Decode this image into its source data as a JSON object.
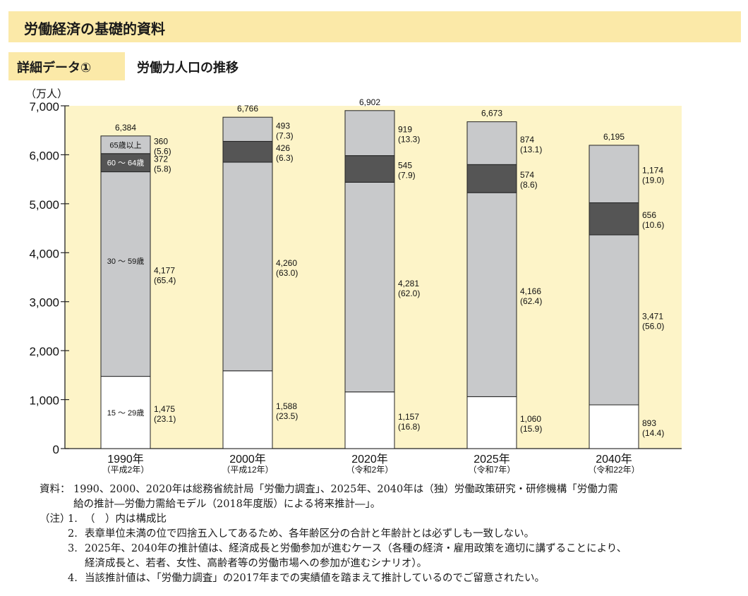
{
  "header": {
    "title": "労働経済の基礎的資料"
  },
  "section": {
    "tag": "詳細データ①",
    "title": "労働力人口の推移"
  },
  "colors": {
    "plot_bg": "#fdf4c8",
    "age_15_29": "#ffffff",
    "age_30_59": "#c8c9cb",
    "age_60_64": "#555555",
    "age_65_plus": "#c8c9cb"
  },
  "chart_data": {
    "type": "bar",
    "stacked": true,
    "ylabel": "（万人）",
    "ylim": [
      0,
      7000
    ],
    "yticks": [
      "0",
      "1,000",
      "2,000",
      "3,000",
      "4,000",
      "5,000",
      "6,000",
      "7,000"
    ],
    "categories": [
      "1990年",
      "2000年",
      "2020年",
      "2025年",
      "2040年"
    ],
    "category_sublabels": [
      "（平成2年）",
      "（平成12年）",
      "（令和2年）",
      "（令和7年）",
      "（令和22年）"
    ],
    "totals": [
      6384,
      6766,
      6902,
      6673,
      6195
    ],
    "total_labels": [
      "6,384",
      "6,766",
      "6,902",
      "6,673",
      "6,195"
    ],
    "series": [
      {
        "name": "15 ～ 29歳",
        "values": [
          1475,
          1588,
          1157,
          1060,
          893
        ],
        "value_labels": [
          "1,475",
          "1,588",
          "1,157",
          "1,060",
          "893"
        ],
        "share_labels": [
          "(23.1)",
          "(23.5)",
          "(16.8)",
          "(15.9)",
          "(14.4)"
        ]
      },
      {
        "name": "30 ～ 59歳",
        "values": [
          4177,
          4260,
          4281,
          4166,
          3471
        ],
        "value_labels": [
          "4,177",
          "4,260",
          "4,281",
          "4,166",
          "3,471"
        ],
        "share_labels": [
          "(65.4)",
          "(63.0)",
          "(62.0)",
          "(62.4)",
          "(56.0)"
        ]
      },
      {
        "name": "60 ～ 64歳",
        "values": [
          372,
          426,
          545,
          574,
          656
        ],
        "value_labels": [
          "372",
          "426",
          "545",
          "574",
          "656"
        ],
        "share_labels": [
          "(5.8)",
          "(6.3)",
          "(7.9)",
          "(8.6)",
          "(10.6)"
        ]
      },
      {
        "name": "65歳以上",
        "values": [
          360,
          493,
          919,
          874,
          1174
        ],
        "value_labels": [
          "360",
          "493",
          "919",
          "874",
          "1,174"
        ],
        "share_labels": [
          "(5.6)",
          "(7.3)",
          "(13.3)",
          "(13.1)",
          "(19.0)"
        ]
      }
    ]
  },
  "notes": {
    "source_label": "資料：",
    "source_line1": "1990、2000、2020年は総務省統計局「労働力調査」、2025年、2040年は（独）労働政策研究・研修機構「労働力需",
    "source_line2": "給の推計―労働力需給モデル（2018年度版）による将来推計―」。",
    "note_label": "（注）",
    "items": [
      {
        "num": "1.",
        "text": "（　）内は構成比"
      },
      {
        "num": "2.",
        "text": "表章単位未満の位で四捨五入してあるため、各年齢区分の合計と年齢計とは必ずしも一致しない。"
      },
      {
        "num": "3.",
        "text": "2025年、2040年の推計値は、経済成長と労働参加が進むケース（各種の経済・雇用政策を適切に講ずることにより、"
      },
      {
        "num": "",
        "text": "経済成長と、若者、女性、高齢者等の労働市場への参加が進むシナリオ）。"
      },
      {
        "num": "4.",
        "text": "当該推計値は、「労働力調査」の2017年までの実績値を踏まえて推計しているのでご留意されたい。"
      }
    ]
  }
}
